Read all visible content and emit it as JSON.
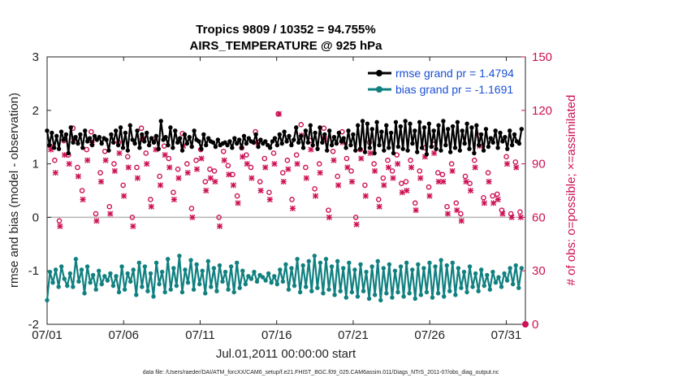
{
  "chart_data": {
    "type": "line",
    "title": "Tropics 9809 / 10352 = 94.755%",
    "subtitle": "AIRS_TEMPERATURE @ 925 hPa",
    "xlabel": "Jul.01,2011 00:00:00 start",
    "ylabel": "rmse and bias (model - observation)",
    "ylabel_right": "# of obs: o=possible; ×=assimilated",
    "footnote": "data file: /Users/raeder/DAI/ATM_forcXX/CAM6_setup/f.e21.FHIST_BGC.f09_025.CAM6assim.011/Diags_NTrS_2011-07/obs_diag_output.nc",
    "ylim": [
      -2,
      3
    ],
    "ylim_right": [
      0,
      150
    ],
    "xlim": [
      0,
      31.25
    ],
    "x_ticks": [
      {
        "v": 0,
        "label": "07/01"
      },
      {
        "v": 5,
        "label": "07/06"
      },
      {
        "v": 10,
        "label": "07/11"
      },
      {
        "v": 15,
        "label": "07/16"
      },
      {
        "v": 20,
        "label": "07/21"
      },
      {
        "v": 25,
        "label": "07/26"
      },
      {
        "v": 30,
        "label": "07/31"
      }
    ],
    "y_ticks": [
      {
        "v": -2,
        "label": "-2"
      },
      {
        "v": -1,
        "label": "-1"
      },
      {
        "v": 0,
        "label": "0"
      },
      {
        "v": 1,
        "label": "1"
      },
      {
        "v": 2,
        "label": "2"
      },
      {
        "v": 3,
        "label": "3"
      }
    ],
    "y_ticks_right": [
      {
        "v": 0,
        "label": "0"
      },
      {
        "v": 30,
        "label": "30"
      },
      {
        "v": 60,
        "label": "60"
      },
      {
        "v": 90,
        "label": "90"
      },
      {
        "v": 120,
        "label": "120"
      },
      {
        "v": 150,
        "label": "150"
      }
    ],
    "zero_line": 0,
    "legend_position": "top-right",
    "series": [
      {
        "name": "rmse grand pr = 1.4794",
        "color": "#000000",
        "axis": "left",
        "values": [
          1.62,
          1.35,
          1.58,
          1.3,
          1.52,
          1.28,
          1.6,
          1.45,
          1.55,
          1.2,
          1.68,
          1.4,
          1.5,
          1.38,
          1.55,
          1.3,
          1.62,
          1.42,
          1.48,
          1.35,
          1.52,
          1.45,
          1.5,
          1.38,
          1.48,
          1.45,
          1.25,
          1.55,
          1.4,
          1.62,
          1.35,
          1.68,
          1.3,
          1.58,
          1.25,
          1.72,
          1.45,
          1.38,
          1.62,
          1.3,
          1.55,
          1.42,
          1.58,
          1.35,
          1.48,
          1.4,
          1.52,
          1.28,
          1.8,
          1.45,
          1.5,
          1.35,
          1.68,
          1.3,
          1.62,
          1.4,
          1.48,
          1.25,
          1.55,
          1.38,
          1.5,
          1.32,
          1.62,
          1.45,
          1.42,
          1.28,
          1.55,
          1.35,
          1.48,
          1.42,
          1.4,
          1.32,
          1.45,
          1.35,
          1.38,
          1.4,
          1.35,
          1.42,
          1.3,
          1.48,
          1.38,
          1.45,
          1.3,
          1.52,
          1.38,
          1.48,
          1.42,
          1.4,
          1.55,
          1.32,
          1.45,
          1.38,
          1.42,
          1.35,
          1.3,
          1.42,
          1.48,
          1.35,
          1.55,
          1.38,
          1.6,
          1.42,
          1.52,
          1.35,
          1.45,
          1.68,
          1.4,
          1.52,
          1.3,
          1.62,
          1.4,
          1.72,
          1.35,
          1.58,
          1.28,
          1.68,
          1.4,
          1.55,
          1.25,
          1.62,
          1.35,
          1.5,
          1.38,
          1.58,
          1.42,
          1.48,
          1.3,
          1.62,
          1.35,
          1.55,
          1.25,
          1.72,
          1.28,
          1.8,
          1.22,
          1.75,
          1.3,
          1.65,
          1.2,
          1.78,
          1.35,
          1.6,
          1.25,
          1.72,
          1.3,
          1.58,
          1.2,
          1.78,
          1.32,
          1.7,
          1.28,
          1.8,
          1.25,
          1.75,
          1.38,
          1.62,
          1.22,
          1.78,
          1.3,
          1.68,
          1.18,
          1.75,
          1.32,
          1.62,
          1.28,
          1.72,
          1.25,
          1.8,
          1.35,
          1.65,
          1.22,
          1.7,
          1.3,
          1.78,
          1.25,
          1.62,
          1.38,
          1.75,
          1.28,
          1.68,
          1.2,
          1.72,
          1.35,
          1.55,
          1.25,
          1.65,
          1.32,
          1.48,
          1.4,
          1.62,
          1.3,
          1.58,
          1.42,
          1.5,
          1.28,
          1.62,
          1.35,
          1.55,
          1.42,
          1.38,
          1.65
        ]
      },
      {
        "name": "bias grand pr = -1.1691",
        "color": "#118080",
        "axis": "left",
        "values": [
          -1.55,
          -1.02,
          -1.22,
          -0.98,
          -1.3,
          -0.92,
          -1.15,
          -1.28,
          -1.05,
          -1.3,
          -0.78,
          -1.2,
          -0.98,
          -1.42,
          -0.92,
          -1.22,
          -1.08,
          -1.35,
          -1.0,
          -1.25,
          -1.1,
          -1.18,
          -1.05,
          -1.28,
          -1.1,
          -1.4,
          -0.92,
          -1.35,
          -1.05,
          -1.2,
          -0.98,
          -1.45,
          -0.85,
          -1.3,
          -0.92,
          -1.38,
          -1.05,
          -1.48,
          -0.85,
          -1.25,
          -1.02,
          -1.4,
          -0.78,
          -1.35,
          -0.95,
          -1.28,
          -0.72,
          -1.4,
          -0.98,
          -1.22,
          -0.8,
          -1.35,
          -0.88,
          -1.25,
          -1.0,
          -1.42,
          -0.82,
          -1.3,
          -0.95,
          -1.38,
          -0.9,
          -1.2,
          -1.02,
          -1.35,
          -0.92,
          -1.4,
          -0.85,
          -1.32,
          -1.0,
          -1.25,
          -1.1,
          -1.15,
          -1.02,
          -1.2,
          -1.08,
          -1.12,
          -1.18,
          -1.05,
          -1.22,
          -1.1,
          -1.25,
          -0.98,
          -1.2,
          -0.88,
          -1.35,
          -0.95,
          -1.28,
          -0.78,
          -1.4,
          -0.9,
          -1.3,
          -0.82,
          -1.38,
          -0.72,
          -1.32,
          -0.85,
          -1.42,
          -0.78,
          -1.35,
          -0.92,
          -1.45,
          -0.82,
          -1.38,
          -0.95,
          -1.5,
          -0.85,
          -1.4,
          -0.98,
          -1.48,
          -0.88,
          -1.38,
          -1.02,
          -1.52,
          -0.92,
          -1.45,
          -0.82,
          -1.55,
          -0.95,
          -1.42,
          -0.88,
          -1.5,
          -1.0,
          -1.4,
          -0.92,
          -1.48,
          -0.85,
          -1.42,
          -0.98,
          -1.52,
          -0.88,
          -1.45,
          -0.95,
          -1.4,
          -0.85,
          -1.5,
          -0.92,
          -1.42,
          -0.8,
          -1.48,
          -0.9,
          -1.38,
          -0.85,
          -1.45,
          -0.95,
          -1.32,
          -1.02,
          -1.4,
          -0.92,
          -1.3,
          -1.05,
          -1.38,
          -0.98,
          -1.28,
          -1.08,
          -1.35,
          -1.02,
          -1.22,
          -1.12,
          -1.3,
          -1.05,
          -1.18,
          -0.95,
          -1.25,
          -0.9,
          -1.32,
          -0.95
        ]
      }
    ],
    "scatter": [
      {
        "name": "possible",
        "marker": "o",
        "color": "#cc1155",
        "axis": "right",
        "values": [
          100,
          92,
          58,
          103,
          95,
          110,
          88,
          75,
          98,
          108,
          62,
          85,
          97,
          66,
          90,
          102,
          78,
          94,
          60,
          88,
          110,
          96,
          70,
          104,
          83,
          100,
          93,
          74,
          87,
          107,
          90,
          65,
          92,
          98,
          80,
          87,
          86,
          60,
          97,
          89,
          84,
          72,
          99,
          95,
          88,
          108,
          80,
          93,
          74,
          96,
          118,
          85,
          92,
          70,
          95,
          112,
          88,
          103,
          76,
          90,
          110,
          64,
          97,
          83,
          108,
          93,
          86,
          60,
          98,
          78,
          102,
          90,
          70,
          82,
          92,
          86,
          95,
          79,
          80,
          92,
          68,
          86,
          99,
          77,
          101,
          85,
          84,
          66,
          90,
          68,
          62,
          83,
          79,
          92,
          106,
          71,
          85,
          72,
          73,
          64,
          94,
          62,
          91,
          63
        ]
      },
      {
        "name": "assimilated",
        "marker": "x",
        "color": "#cc1155",
        "axis": "right",
        "values": [
          98,
          85,
          55,
          95,
          90,
          104,
          83,
          70,
          92,
          102,
          58,
          80,
          92,
          62,
          86,
          96,
          72,
          88,
          55,
          82,
          104,
          90,
          66,
          98,
          78,
          95,
          88,
          70,
          82,
          100,
          85,
          60,
          87,
          93,
          75,
          82,
          80,
          55,
          92,
          84,
          78,
          68,
          94,
          90,
          82,
          102,
          75,
          88,
          70,
          90,
          118,
          80,
          87,
          65,
          90,
          106,
          82,
          98,
          72,
          85,
          104,
          60,
          92,
          78,
          102,
          88,
          80,
          56,
          93,
          72,
          96,
          86,
          66,
          78,
          88,
          82,
          90,
          74,
          75,
          88,
          64,
          82,
          94,
          72,
          96,
          80,
          80,
          62,
          86,
          64,
          58,
          80,
          75,
          88,
          100,
          68,
          80,
          68,
          70,
          62,
          90,
          60,
          88,
          60
        ]
      }
    ]
  }
}
